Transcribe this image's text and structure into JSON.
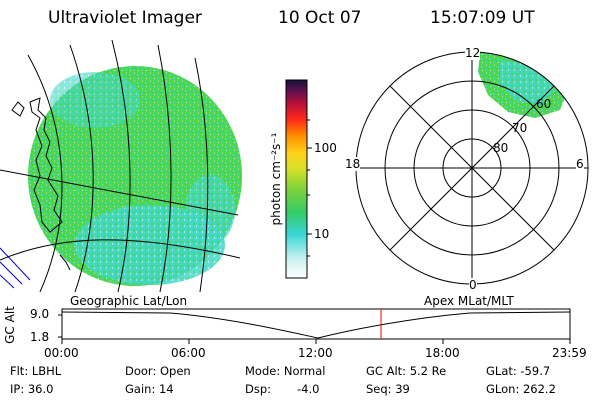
{
  "header": {
    "title": "Ultraviolet Imager",
    "date": "10 Oct 07",
    "time": "15:07:09 UT"
  },
  "colorbar": {
    "unit_label": "photon cm⁻²s⁻¹",
    "ticks": [
      "100",
      "10"
    ]
  },
  "polar_plot": {
    "mlt_labels": [
      "12",
      "18",
      "6",
      "0"
    ],
    "lat_labels": [
      "80",
      "70",
      "60"
    ]
  },
  "map_labels": {
    "left": "Geographic Lat/Lon",
    "right": "Apex MLat/MLT"
  },
  "altitude_plot": {
    "ylabel": "GC Alt",
    "yticks": [
      "9.0",
      "1.8"
    ],
    "xticks": [
      "00:00",
      "06:00",
      "12:00",
      "18:00",
      "23:59"
    ]
  },
  "info": {
    "filter": "Flt: LBHL",
    "ip": "IP: 36.0",
    "door": "Door: Open",
    "gain": "Gain: 14",
    "mode": "Mode: Normal",
    "dsp_label": "Dsp:",
    "dsp_value": "-4.0",
    "gc_alt": "GC Alt: 5.2 Re",
    "seq": "Seq: 39",
    "glat": "GLat: -59.7",
    "glon": "GLon: 262.2"
  },
  "colors": {
    "green": "#4cd64a",
    "cyan": "#3fd9d2",
    "marker": "#ff0000"
  }
}
